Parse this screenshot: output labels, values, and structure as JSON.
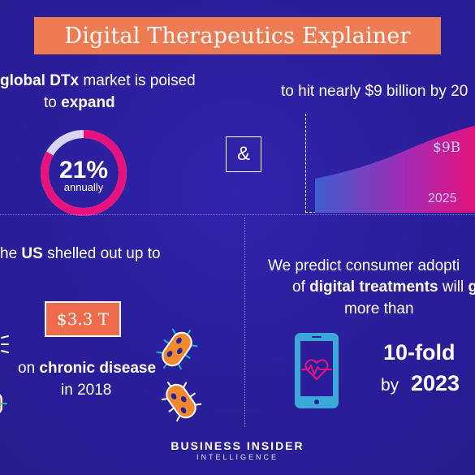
{
  "title": "Digital Therapeutics Explainer",
  "market": {
    "line1_bold": "global DTx",
    "line1_rest": "market is poised",
    "line2_prefix": "to",
    "line2_bold": "expand",
    "percent": "21%",
    "percent_sub": "annually",
    "growth_fraction": 0.21
  },
  "ampersand": "&",
  "revenue": {
    "text": "to hit nearly $9 billion by 20",
    "value_label": "$9B",
    "year_label": "2025"
  },
  "spending": {
    "line1_prefix": "he",
    "line1_bold": "US",
    "line1_rest": "shelled out up to",
    "amount": "$3.3 T",
    "line3_prefix": "on",
    "line3_bold": "chronic disease",
    "line4": "in 2018"
  },
  "adoption": {
    "line1": "We predict consumer adopti",
    "line2_prefix": "of",
    "line2_bold": "digital treatments",
    "line2_mid": "will",
    "line2_bold2": "gro",
    "line3": "more than",
    "multiplier": "10-fold",
    "by": "by",
    "year": "2023"
  },
  "brand": {
    "name": "BUSINESS INSIDER",
    "sub": "INTELLIGENCE"
  },
  "colors": {
    "background": "#2a1f9a",
    "banner": "#ee7b52",
    "magenta": "#e8127d",
    "teal": "#22b5c8",
    "orange": "#f08a2c",
    "light_blue": "#b4d8ff"
  },
  "icons": [
    "bacteria-icon",
    "bacteria-icon",
    "bacteria-icon",
    "bacteria-icon",
    "smartphone-heart-icon"
  ]
}
